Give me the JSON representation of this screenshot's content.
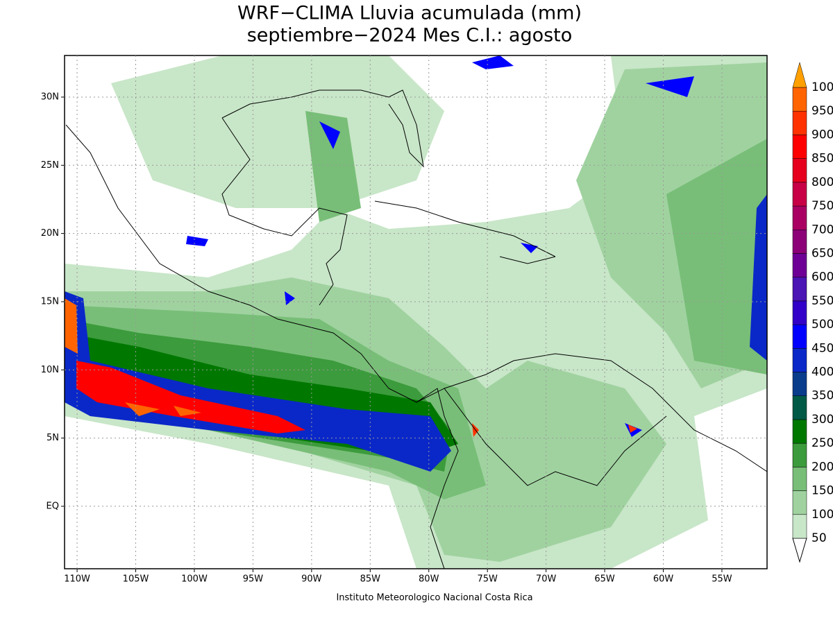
{
  "title": [
    "WRF−CLIMA Lluvia acumulada (mm)",
    "septiembre−2024 Mes C.I.: agosto"
  ],
  "map": {
    "lonlim": [
      -111.07,
      -51.15
    ],
    "latlim": [
      -4.58,
      33.05
    ],
    "xticks": [
      {
        "value": -110,
        "label": "110W"
      },
      {
        "value": -105,
        "label": "105W"
      },
      {
        "value": -100,
        "label": "100W"
      },
      {
        "value": -95,
        "label": "95W"
      },
      {
        "value": -90,
        "label": "90W"
      },
      {
        "value": -85,
        "label": "85W"
      },
      {
        "value": -80,
        "label": "80W"
      },
      {
        "value": -75,
        "label": "75W"
      },
      {
        "value": -70,
        "label": "70W"
      },
      {
        "value": -65,
        "label": "65W"
      },
      {
        "value": -60,
        "label": "60W"
      },
      {
        "value": -55,
        "label": "55W"
      }
    ],
    "yticks": [
      {
        "value": 0,
        "label": "EQ"
      },
      {
        "value": 5,
        "label": "5N"
      },
      {
        "value": 10,
        "label": "10N"
      },
      {
        "value": 15,
        "label": "15N"
      },
      {
        "value": 20,
        "label": "20N"
      },
      {
        "value": 25,
        "label": "25N"
      },
      {
        "value": 30,
        "label": "30N"
      }
    ]
  },
  "colorbar": {
    "levels": [
      50,
      100,
      150,
      200,
      250,
      300,
      350,
      400,
      450,
      500,
      550,
      600,
      650,
      700,
      750,
      800,
      850,
      900,
      950,
      1000
    ],
    "colors": [
      "#c8e6c8",
      "#a0d2a0",
      "#78be78",
      "#3c9b3c",
      "#007800",
      "#005a46",
      "#0a3c8c",
      "#0a28c8",
      "#0000ff",
      "#3200c8",
      "#4b14b4",
      "#6e0096",
      "#8c0078",
      "#aa0064",
      "#c80046",
      "#e6001e",
      "#ff0000",
      "#ff3200",
      "#ff6400",
      "#ffa000"
    ]
  },
  "credit": "Instituto Meteorologico Nacional Costa Rica"
}
